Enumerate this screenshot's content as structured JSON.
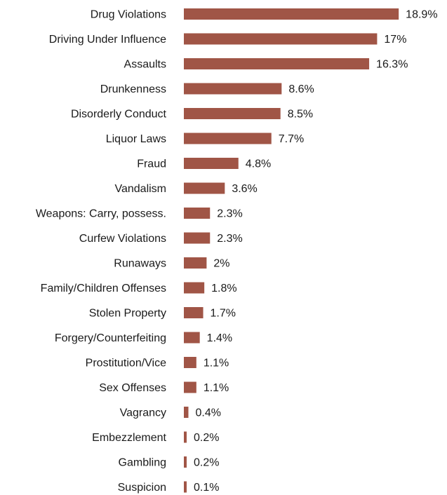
{
  "chart_data": {
    "type": "bar",
    "orientation": "horizontal",
    "title": "",
    "xlabel": "",
    "ylabel": "",
    "unit": "%",
    "bar_color": "#a05546",
    "grid": false,
    "legend": "none",
    "xlim": [
      0,
      20
    ],
    "categories": [
      "Drug Violations",
      "Driving Under Influence",
      "Assaults",
      "Drunkenness",
      "Disorderly Conduct",
      "Liquor Laws",
      "Fraud",
      "Vandalism",
      "Weapons: Carry, possess.",
      "Curfew Violations",
      "Runaways",
      "Family/Children Offenses",
      "Stolen Property",
      "Forgery/Counterfeiting",
      "Prostitution/Vice",
      "Sex Offenses",
      "Vagrancy",
      "Embezzlement",
      "Gambling",
      "Suspicion"
    ],
    "values": [
      18.9,
      17,
      16.3,
      8.6,
      8.5,
      7.7,
      4.8,
      3.6,
      2.3,
      2.3,
      2,
      1.8,
      1.7,
      1.4,
      1.1,
      1.1,
      0.4,
      0.2,
      0.2,
      0.1
    ],
    "value_labels": [
      "18.9%",
      "17%",
      "16.3%",
      "8.6%",
      "8.5%",
      "7.7%",
      "4.8%",
      "3.6%",
      "2.3%",
      "2.3%",
      "2%",
      "1.8%",
      "1.7%",
      "1.4%",
      "1.1%",
      "1.1%",
      "0.4%",
      "0.2%",
      "0.2%",
      "0.1%"
    ]
  }
}
